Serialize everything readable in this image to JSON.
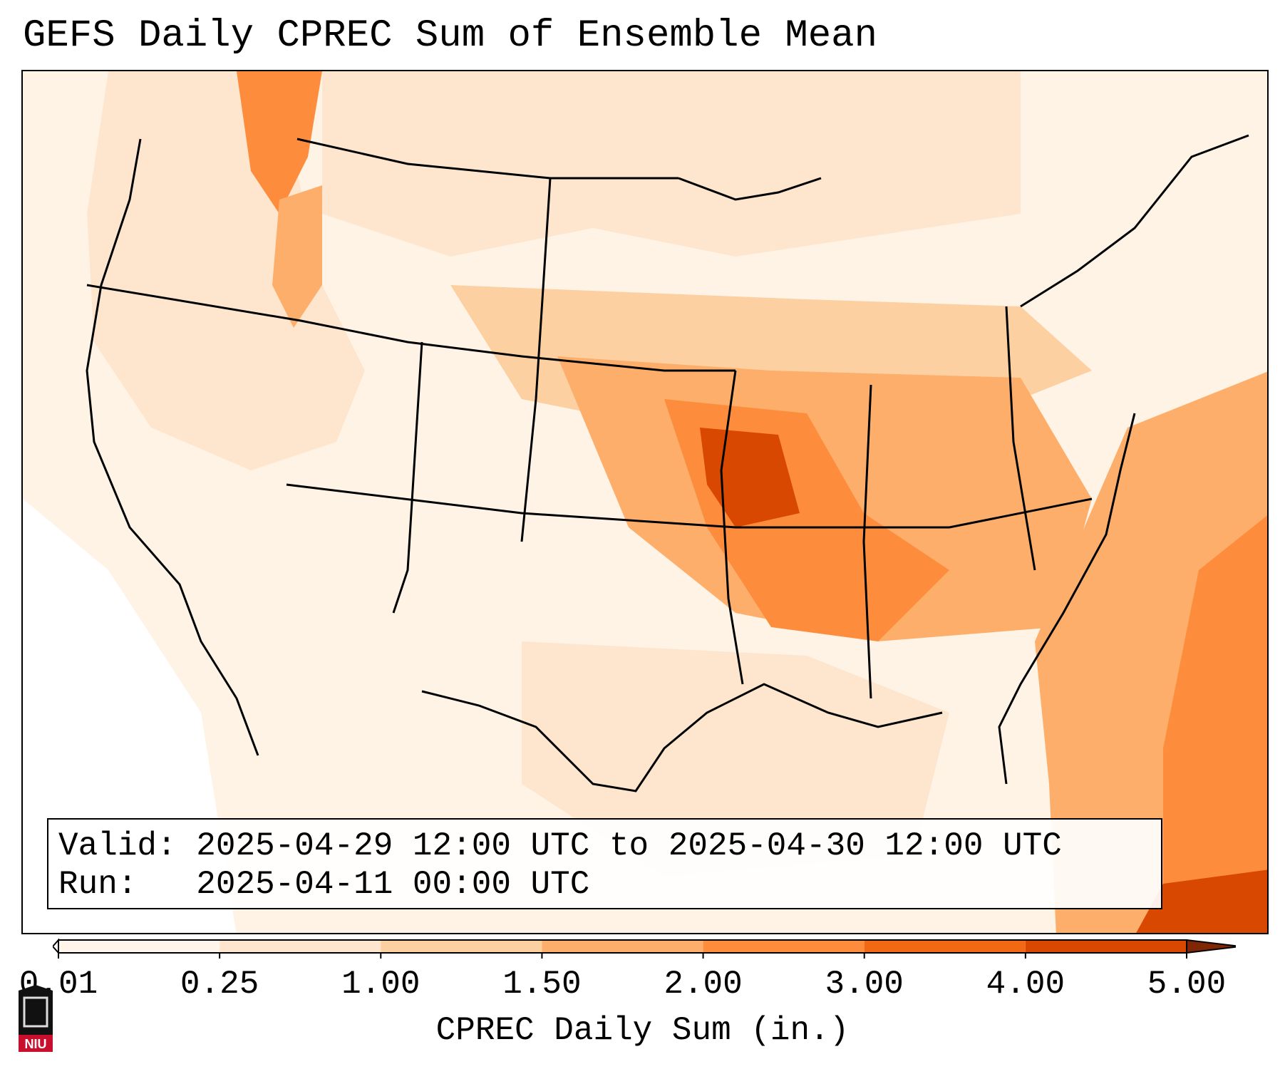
{
  "title": "GEFS Daily CPREC Sum of Ensemble Mean",
  "info_box": {
    "valid_label": "Valid:",
    "valid_value": "2025-04-29 12:00 UTC to 2025-04-30 12:00 UTC",
    "run_label": "Run:",
    "run_value": "2025-04-11 00:00 UTC"
  },
  "colorbar": {
    "label": "CPREC Daily Sum (in.)",
    "ticks": [
      "0.01",
      "0.25",
      "1.00",
      "1.50",
      "2.00",
      "3.00",
      "4.00",
      "5.00"
    ],
    "colors": [
      "#ffffff",
      "#fff5eb",
      "#fee6ce",
      "#fdd0a2",
      "#fdae6b",
      "#fd8d3c",
      "#f16913",
      "#d94801",
      "#a63603",
      "#7f2704"
    ]
  },
  "logo": {
    "text": "NIU"
  },
  "map": {
    "region": "CONUS",
    "max_region": "Missouri / Arkansas-Tennessee corridor",
    "colors": {
      "background": "#fff3e6",
      "light": "#fee6ce",
      "medium": "#fdd0a2",
      "orange": "#fdae6b",
      "strong": "#fd8d3c",
      "max": "#d94801"
    }
  }
}
